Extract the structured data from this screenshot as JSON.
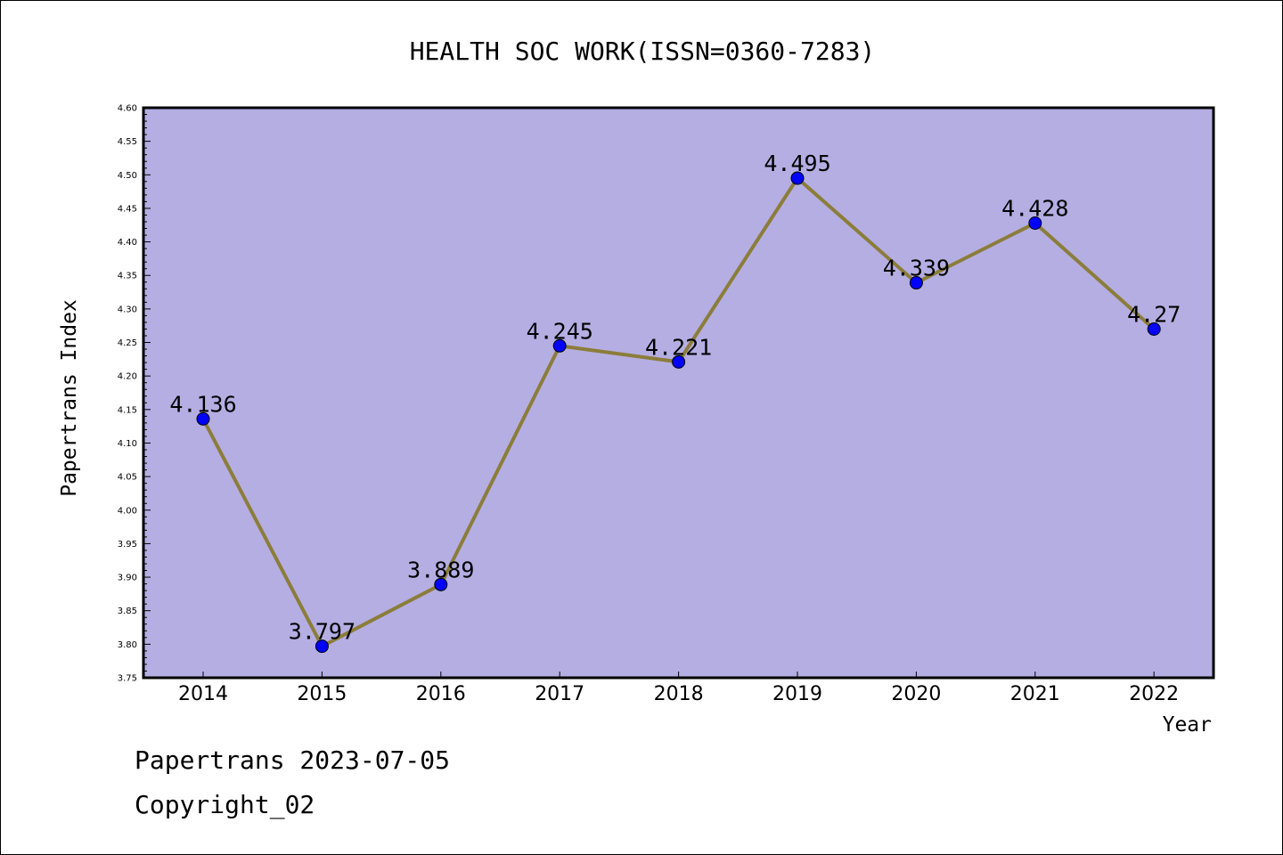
{
  "chart_data": {
    "type": "line",
    "title": "HEALTH SOC WORK(ISSN=0360-7283)",
    "xlabel": "Year",
    "ylabel": "Papertrans Index",
    "categories": [
      "2014",
      "2015",
      "2016",
      "2017",
      "2018",
      "2019",
      "2020",
      "2021",
      "2022"
    ],
    "series": [
      {
        "values": [
          4.136,
          3.797,
          3.889,
          4.245,
          4.221,
          4.495,
          4.339,
          4.428,
          4.27
        ],
        "labels": [
          "4.136",
          "3.797",
          "3.889",
          "4.245",
          "4.221",
          "4.495",
          "4.339",
          "4.428",
          "4.27"
        ]
      }
    ],
    "ylim": [
      3.75,
      4.6
    ],
    "ytick_step": 0.05,
    "grid": false,
    "colors": {
      "plot_background": "#b5aee3",
      "line": "#8b7d3a",
      "marker": "#0000ff"
    }
  },
  "footer": {
    "line1": "Papertrans 2023-07-05",
    "line2": "Copyright_02"
  }
}
